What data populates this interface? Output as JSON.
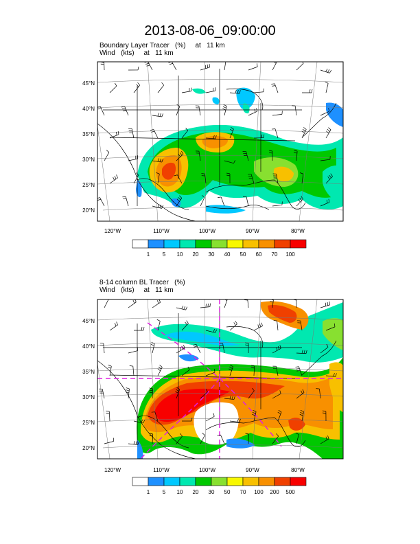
{
  "page_title": "2013-08-06_09:00:00",
  "colors": {
    "background": "#ffffff",
    "land": "#ffffff",
    "lines": "#000000",
    "reference_line": "#e020e0"
  },
  "panels": [
    {
      "id": "top",
      "title_line1": "Boundary Layer Tracer   (%)     at   11 km",
      "title_line2": "Wind   (kts)     at   11 km",
      "lat_labels": [
        "45°N",
        "40°N",
        "35°N",
        "30°N",
        "25°N",
        "20°N"
      ],
      "lat_values": [
        45,
        40,
        35,
        30,
        25,
        20
      ],
      "lon_labels": [
        "120°W",
        "110°W",
        "100°W",
        "90°W",
        "80°W"
      ],
      "lon_values": [
        -120,
        -110,
        -100,
        -90,
        -80
      ],
      "colorbar": {
        "labels": [
          "1",
          "5",
          "10",
          "20",
          "30",
          "40",
          "50",
          "60",
          "70",
          "100"
        ],
        "colors": [
          "#ffffff",
          "#1e90ff",
          "#00c8ff",
          "#00e8b0",
          "#00c800",
          "#88e030",
          "#f8f800",
          "#f8c000",
          "#f89000",
          "#f04000",
          "#f80000"
        ]
      }
    },
    {
      "id": "bottom",
      "title_line1": "8-14 column BL Tracer   (%)",
      "title_line2": "Wind   (kts)     at   11 km",
      "lat_labels": [
        "45°N",
        "40°N",
        "35°N",
        "30°N",
        "25°N",
        "20°N"
      ],
      "lat_values": [
        45,
        40,
        35,
        30,
        25,
        20
      ],
      "lon_labels": [
        "120°W",
        "110°W",
        "100°W",
        "90°W",
        "80°W"
      ],
      "lon_values": [
        -120,
        -110,
        -100,
        -90,
        -80
      ],
      "colorbar": {
        "labels": [
          "1",
          "5",
          "10",
          "20",
          "30",
          "50",
          "70",
          "100",
          "200",
          "500"
        ],
        "colors": [
          "#ffffff",
          "#1e90ff",
          "#00c8ff",
          "#00e8b0",
          "#00c800",
          "#88e030",
          "#f8f800",
          "#f8c000",
          "#f89000",
          "#f04000",
          "#f80000"
        ]
      }
    }
  ]
}
